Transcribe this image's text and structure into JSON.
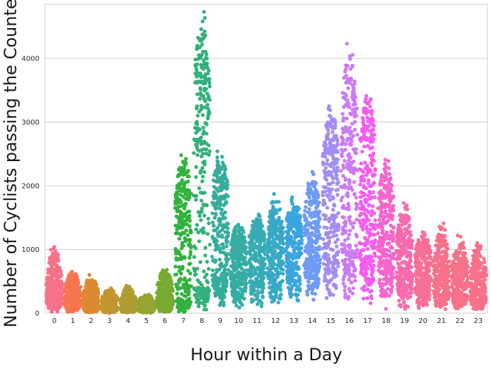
{
  "chart_data": {
    "type": "scatter",
    "subtype": "swarm",
    "xlabel": "Hour within a Day",
    "ylabel": "Number of Cyclists passing the Counter",
    "categories": [
      "0",
      "1",
      "2",
      "3",
      "4",
      "5",
      "6",
      "7",
      "8",
      "9",
      "10",
      "11",
      "12",
      "13",
      "14",
      "15",
      "16",
      "17",
      "18",
      "19",
      "20",
      "21",
      "22",
      "23"
    ],
    "ylim": [
      0,
      4850
    ],
    "yticks": [
      0,
      1000,
      2000,
      3000,
      4000
    ],
    "ytick_labels": [
      "0",
      "1000",
      "2000",
      "3000",
      "4000"
    ],
    "grid": true,
    "legend": "none",
    "series_colors": [
      "#f77189",
      "#f7754f",
      "#dc8932",
      "#c39532",
      "#ae9d31",
      "#97a431",
      "#77ab31",
      "#31b33e",
      "#33b07a",
      "#35ad9c",
      "#36ada4",
      "#37abb4",
      "#38a9c5",
      "#3aa5df",
      "#6e9bf4",
      "#a48cf4",
      "#cc7af4",
      "#f45cf2",
      "#f565cc",
      "#f66bad",
      "#f66f98",
      "#f77189",
      "#f77189",
      "#f77189"
    ],
    "distribution": [
      {
        "hour": "0",
        "min": 0,
        "q1": 180,
        "median": 320,
        "q3": 520,
        "max": 1040
      },
      {
        "hour": "1",
        "min": 0,
        "q1": 120,
        "median": 240,
        "q3": 400,
        "max": 650
      },
      {
        "hour": "2",
        "min": 0,
        "q1": 70,
        "median": 170,
        "q3": 300,
        "max": 600
      },
      {
        "hour": "3",
        "min": 0,
        "q1": 50,
        "median": 130,
        "q3": 230,
        "max": 390
      },
      {
        "hour": "4",
        "min": 0,
        "q1": 50,
        "median": 130,
        "q3": 220,
        "max": 430
      },
      {
        "hour": "5",
        "min": 0,
        "q1": 40,
        "median": 110,
        "q3": 200,
        "max": 290
      },
      {
        "hour": "6",
        "min": 0,
        "q1": 110,
        "median": 230,
        "q3": 430,
        "max": 680
      },
      {
        "hour": "7",
        "min": 0,
        "q1": 200,
        "median": 1200,
        "q3": 1850,
        "max": 2480
      },
      {
        "hour": "8",
        "min": 0,
        "q1": 400,
        "median": 2500,
        "q3": 3600,
        "max": 4730
      },
      {
        "hour": "9",
        "min": 30,
        "q1": 550,
        "median": 1200,
        "q3": 1950,
        "max": 2540
      },
      {
        "hour": "10",
        "min": 50,
        "q1": 500,
        "median": 850,
        "q3": 1100,
        "max": 1390
      },
      {
        "hour": "11",
        "min": 50,
        "q1": 550,
        "median": 900,
        "q3": 1200,
        "max": 1550
      },
      {
        "hour": "12",
        "min": 100,
        "q1": 650,
        "median": 1000,
        "q3": 1300,
        "max": 1870
      },
      {
        "hour": "13",
        "min": 100,
        "q1": 700,
        "median": 1050,
        "q3": 1400,
        "max": 1820
      },
      {
        "hour": "14",
        "min": 150,
        "q1": 750,
        "median": 1150,
        "q3": 1600,
        "max": 2220
      },
      {
        "hour": "15",
        "min": 150,
        "q1": 900,
        "median": 1600,
        "q3": 2500,
        "max": 3250
      },
      {
        "hour": "16",
        "min": 150,
        "q1": 1000,
        "median": 2200,
        "q3": 3200,
        "max": 4230
      },
      {
        "hour": "17",
        "min": 100,
        "q1": 900,
        "median": 1800,
        "q3": 2700,
        "max": 3410
      },
      {
        "hour": "18",
        "min": 50,
        "q1": 700,
        "median": 1200,
        "q3": 1800,
        "max": 2410
      },
      {
        "hour": "19",
        "min": 50,
        "q1": 450,
        "median": 800,
        "q3": 1200,
        "max": 1730
      },
      {
        "hour": "20",
        "min": 50,
        "q1": 350,
        "median": 650,
        "q3": 950,
        "max": 1270
      },
      {
        "hour": "21",
        "min": 50,
        "q1": 300,
        "median": 550,
        "q3": 850,
        "max": 1410
      },
      {
        "hour": "22",
        "min": 50,
        "q1": 250,
        "median": 500,
        "q3": 750,
        "max": 1220
      },
      {
        "hour": "23",
        "min": 50,
        "q1": 200,
        "median": 400,
        "q3": 650,
        "max": 1100
      }
    ]
  }
}
